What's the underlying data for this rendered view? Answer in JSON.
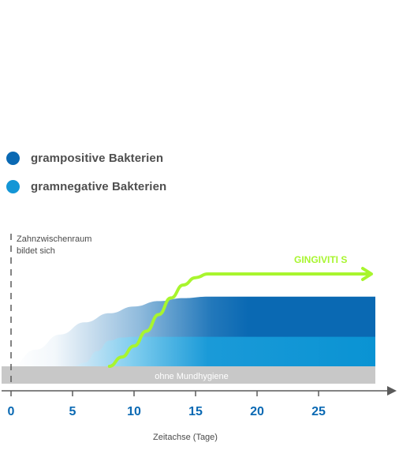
{
  "legend": [
    {
      "label": "grampositive Bakterien",
      "color": "#0a69b3"
    },
    {
      "label": "gramnegative Bakterien",
      "color": "#1496d6"
    }
  ],
  "chart_data": {
    "type": "area",
    "x_axis": {
      "label": "Zeitachse (Tage)",
      "ticks": [
        0,
        5,
        10,
        15,
        20,
        25
      ],
      "range": [
        0,
        31
      ]
    },
    "baseline_band": {
      "label": "ohne Mundhygiene"
    },
    "marker": {
      "x": 0,
      "label_lines": [
        "Zahnzwischenraum",
        "bildet sich"
      ]
    },
    "series": [
      {
        "role": "grampositive",
        "color": "#0a69b3",
        "x": [
          0,
          2,
          4,
          6,
          8,
          10,
          12,
          14,
          16,
          20,
          25,
          30
        ],
        "y": [
          0,
          0.22,
          0.42,
          0.58,
          0.7,
          0.79,
          0.86,
          0.9,
          0.92,
          0.92,
          0.92,
          0.92
        ]
      },
      {
        "role": "gramnegative",
        "color": "#1496d6",
        "x": [
          0,
          5,
          6,
          7,
          8,
          9,
          10,
          12,
          14,
          20,
          25,
          30
        ],
        "y": [
          0,
          0,
          0.05,
          0.2,
          0.34,
          0.38,
          0.39,
          0.39,
          0.39,
          0.39,
          0.39,
          0.39
        ]
      },
      {
        "name": "GINGIVITI S",
        "color": "#a8f52e",
        "x": [
          8,
          9,
          10,
          11,
          12,
          13,
          14,
          15,
          16,
          17,
          18,
          30
        ],
        "y": [
          0,
          0.1,
          0.22,
          0.38,
          0.56,
          0.74,
          0.88,
          0.96,
          1.0,
          1.0,
          1.0,
          1.0
        ]
      }
    ]
  }
}
